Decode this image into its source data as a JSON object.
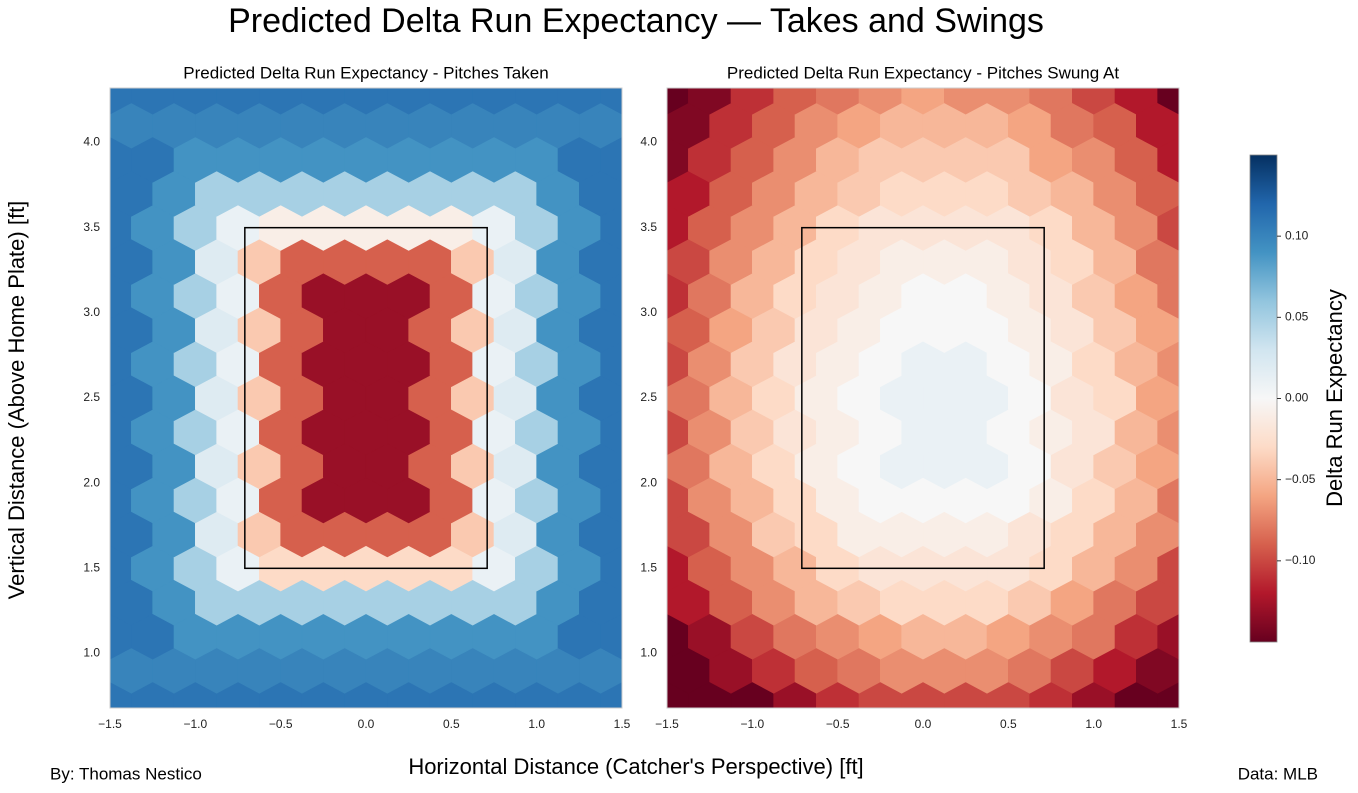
{
  "title": "Predicted Delta Run Expectancy — Takes and Swings",
  "xlabel": "Horizontal Distance (Catcher's Perspective) [ft]",
  "ylabel": "Vertical Distance (Above Home Plate) [ft]",
  "footer_left": "By: Thomas Nestico",
  "footer_right": "Data: MLB",
  "colorbar": {
    "label": "Delta Run Expectancy",
    "clim": [
      -0.15,
      0.15
    ],
    "colormap": [
      "#67001f",
      "#b2182b",
      "#d6604d",
      "#f4a582",
      "#fddbc7",
      "#f7f7f7",
      "#d1e5f0",
      "#92c5de",
      "#4393c3",
      "#2166ac",
      "#053061"
    ],
    "ticks": [
      {
        "value": 0.1,
        "label": "0.10"
      },
      {
        "value": 0.05,
        "label": "0.05"
      },
      {
        "value": 0,
        "label": "0.00"
      },
      {
        "value": -0.05,
        "label": "−0.05"
      },
      {
        "value": -0.1,
        "label": "−0.10"
      }
    ]
  },
  "chart_data": [
    {
      "type": "hexbin",
      "title": "Predicted Delta Run Expectancy - Pitches Taken",
      "xlim": [
        -1.5,
        1.5
      ],
      "ylim": [
        0.68,
        4.32
      ],
      "xticks": [
        {
          "value": -1.5,
          "label": "−1.5"
        },
        {
          "value": -1,
          "label": "−1.0"
        },
        {
          "value": -0.5,
          "label": "−0.5"
        },
        {
          "value": 0,
          "label": "0.0"
        },
        0.5,
        {
          "value": 1,
          "label": "1.0"
        },
        1.5
      ],
      "yticks": [
        {
          "value": 1,
          "label": "1.0"
        },
        1.5,
        {
          "value": 2,
          "label": "2.0"
        },
        2.5,
        {
          "value": 3,
          "label": "3.0"
        },
        3.5,
        {
          "value": 4,
          "label": "4.0"
        }
      ],
      "strike_zone": {
        "x": [
          -0.71,
          0.71
        ],
        "y": [
          1.5,
          3.5
        ]
      },
      "x_even_rows": [
        -1.5,
        -1.25,
        -1,
        -0.75,
        -0.5,
        -0.25,
        0,
        0.25,
        0.5,
        0.75,
        1,
        1.25,
        1.5
      ],
      "x_odd_rows": [
        -1.375,
        -1.125,
        -0.875,
        -0.625,
        -0.375,
        -0.125,
        0.125,
        0.375,
        0.625,
        0.875,
        1.125,
        1.375
      ],
      "y": [
        0.7,
        0.9,
        1.1,
        1.3,
        1.5,
        1.7,
        1.9,
        2.1,
        2.3,
        2.5,
        2.7,
        2.9,
        3.1,
        3.3,
        3.5,
        3.7,
        3.9,
        4.1,
        4.3
      ],
      "values": [
        [
          0.11,
          0.11,
          0.11,
          0.11,
          0.11,
          0.11,
          0.11,
          0.11,
          0.11,
          0.11,
          0.11,
          0.11,
          0.11
        ],
        [
          0.1,
          0.1,
          0.1,
          0.1,
          0.1,
          0.1,
          0.1,
          0.1,
          0.1,
          0.1,
          0.1,
          0.1
        ],
        [
          0.11,
          0.11,
          0.09,
          0.09,
          0.09,
          0.09,
          0.09,
          0.09,
          0.09,
          0.09,
          0.09,
          0.11,
          0.11
        ],
        [
          0.11,
          0.09,
          0.05,
          0.05,
          0.05,
          0.05,
          0.05,
          0.05,
          0.05,
          0.05,
          0.09,
          0.11
        ],
        [
          0.11,
          0.09,
          0.05,
          0.01,
          -0.03,
          -0.03,
          -0.03,
          -0.03,
          -0.03,
          0.01,
          0.05,
          0.09,
          0.11
        ],
        [
          0.11,
          0.09,
          0.02,
          -0.04,
          -0.09,
          -0.09,
          -0.09,
          -0.09,
          -0.04,
          0.02,
          0.09,
          0.11
        ],
        [
          0.11,
          0.09,
          0.05,
          0.01,
          -0.09,
          -0.13,
          -0.13,
          -0.13,
          -0.09,
          0.01,
          0.05,
          0.09,
          0.11
        ],
        [
          0.11,
          0.09,
          0.02,
          -0.04,
          -0.09,
          -0.13,
          -0.13,
          -0.09,
          -0.04,
          0.02,
          0.09,
          0.11
        ],
        [
          0.11,
          0.09,
          0.05,
          0.01,
          -0.09,
          -0.13,
          -0.13,
          -0.13,
          -0.09,
          0.01,
          0.05,
          0.09,
          0.11
        ],
        [
          0.11,
          0.09,
          0.02,
          -0.04,
          -0.09,
          -0.13,
          -0.13,
          -0.09,
          -0.04,
          0.02,
          0.09,
          0.11
        ],
        [
          0.11,
          0.09,
          0.05,
          0.01,
          -0.09,
          -0.13,
          -0.13,
          -0.13,
          -0.09,
          0.01,
          0.05,
          0.09,
          0.11
        ],
        [
          0.11,
          0.09,
          0.02,
          -0.04,
          -0.09,
          -0.13,
          -0.13,
          -0.09,
          -0.04,
          0.02,
          0.09,
          0.11
        ],
        [
          0.11,
          0.09,
          0.05,
          0.01,
          -0.09,
          -0.13,
          -0.13,
          -0.13,
          -0.09,
          0.01,
          0.05,
          0.09,
          0.11
        ],
        [
          0.11,
          0.09,
          0.02,
          -0.04,
          -0.09,
          -0.09,
          -0.09,
          -0.09,
          -0.04,
          0.02,
          0.09,
          0.11
        ],
        [
          0.11,
          0.09,
          0.05,
          0.01,
          -0.01,
          -0.01,
          -0.01,
          -0.01,
          -0.01,
          0.01,
          0.05,
          0.09,
          0.11
        ],
        [
          0.11,
          0.09,
          0.05,
          0.05,
          0.05,
          0.05,
          0.05,
          0.05,
          0.05,
          0.05,
          0.09,
          0.11
        ],
        [
          0.11,
          0.11,
          0.09,
          0.09,
          0.09,
          0.09,
          0.09,
          0.09,
          0.09,
          0.09,
          0.09,
          0.11,
          0.11
        ],
        [
          0.1,
          0.1,
          0.1,
          0.1,
          0.1,
          0.1,
          0.1,
          0.1,
          0.1,
          0.1,
          0.1,
          0.1
        ],
        [
          0.11,
          0.11,
          0.11,
          0.11,
          0.11,
          0.11,
          0.11,
          0.11,
          0.11,
          0.11,
          0.11,
          0.11,
          0.11
        ]
      ]
    },
    {
      "type": "hexbin",
      "title": "Predicted Delta Run Expectancy - Pitches Swung At",
      "xlim": [
        -1.5,
        1.5
      ],
      "ylim": [
        0.68,
        4.32
      ],
      "xticks": [
        {
          "value": -1.5,
          "label": "−1.5"
        },
        {
          "value": -1,
          "label": "−1.0"
        },
        {
          "value": -0.5,
          "label": "−0.5"
        },
        {
          "value": 0,
          "label": "0.0"
        },
        0.5,
        {
          "value": 1,
          "label": "1.0"
        },
        1.5
      ],
      "yticks": [
        {
          "value": 1,
          "label": "1.0"
        },
        1.5,
        {
          "value": 2,
          "label": "2.0"
        },
        2.5,
        {
          "value": 3,
          "label": "3.0"
        },
        3.5,
        {
          "value": 4,
          "label": "4.0"
        }
      ],
      "strike_zone": {
        "x": [
          -0.71,
          0.71
        ],
        "y": [
          1.5,
          3.5
        ]
      },
      "x_even_rows": [
        -1.5,
        -1.25,
        -1,
        -0.75,
        -0.5,
        -0.25,
        0,
        0.25,
        0.5,
        0.75,
        1,
        1.25,
        1.5
      ],
      "x_odd_rows": [
        -1.375,
        -1.125,
        -0.875,
        -0.625,
        -0.375,
        -0.125,
        0.125,
        0.375,
        0.625,
        0.875,
        1.125,
        1.375
      ],
      "y": [
        0.7,
        0.9,
        1.1,
        1.3,
        1.5,
        1.7,
        1.9,
        2.1,
        2.3,
        2.5,
        2.7,
        2.9,
        3.1,
        3.3,
        3.5,
        3.7,
        3.9,
        4.1,
        4.3
      ],
      "values": [
        [
          -0.2,
          -0.17,
          -0.15,
          -0.13,
          -0.11,
          -0.1,
          -0.1,
          -0.1,
          -0.1,
          -0.11,
          -0.13,
          -0.15,
          -0.18
        ],
        [
          -0.16,
          -0.13,
          -0.11,
          -0.09,
          -0.08,
          -0.07,
          -0.07,
          -0.07,
          -0.08,
          -0.1,
          -0.12,
          -0.14
        ],
        [
          -0.16,
          -0.13,
          -0.1,
          -0.08,
          -0.07,
          -0.06,
          -0.05,
          -0.05,
          -0.06,
          -0.07,
          -0.08,
          -0.11,
          -0.13
        ],
        [
          -0.12,
          -0.09,
          -0.07,
          -0.05,
          -0.04,
          -0.03,
          -0.03,
          -0.03,
          -0.04,
          -0.06,
          -0.08,
          -0.1
        ],
        [
          -0.12,
          -0.09,
          -0.07,
          -0.05,
          -0.03,
          -0.02,
          -0.02,
          -0.02,
          -0.02,
          -0.03,
          -0.05,
          -0.07,
          -0.1
        ],
        [
          -0.1,
          -0.07,
          -0.04,
          -0.03,
          -0.01,
          -0.01,
          -0.01,
          -0.01,
          -0.02,
          -0.03,
          -0.05,
          -0.07
        ],
        [
          -0.1,
          -0.07,
          -0.05,
          -0.03,
          -0.01,
          0,
          0,
          0,
          0,
          -0.01,
          -0.03,
          -0.05,
          -0.08
        ],
        [
          -0.08,
          -0.05,
          -0.03,
          -0.01,
          0,
          0.01,
          0.01,
          0.01,
          0,
          -0.02,
          -0.04,
          -0.06
        ],
        [
          -0.1,
          -0.07,
          -0.04,
          -0.02,
          -0.01,
          0,
          0.01,
          0.01,
          0,
          -0.01,
          -0.02,
          -0.05,
          -0.07
        ],
        [
          -0.08,
          -0.05,
          -0.03,
          -0.01,
          0,
          0.01,
          0.01,
          0.01,
          0,
          -0.02,
          -0.03,
          -0.06
        ],
        [
          -0.1,
          -0.07,
          -0.04,
          -0.02,
          -0.01,
          0,
          0.01,
          0.01,
          0,
          -0.01,
          -0.03,
          -0.05,
          -0.07
        ],
        [
          -0.09,
          -0.06,
          -0.04,
          -0.02,
          -0.01,
          0,
          0,
          0,
          -0.01,
          -0.02,
          -0.04,
          -0.06
        ],
        [
          -0.11,
          -0.08,
          -0.05,
          -0.03,
          -0.02,
          -0.01,
          0,
          0,
          -0.01,
          -0.02,
          -0.04,
          -0.06,
          -0.08
        ],
        [
          -0.1,
          -0.07,
          -0.05,
          -0.03,
          -0.02,
          -0.01,
          -0.01,
          -0.01,
          -0.02,
          -0.03,
          -0.05,
          -0.08
        ],
        [
          -0.12,
          -0.09,
          -0.07,
          -0.05,
          -0.03,
          -0.02,
          -0.02,
          -0.02,
          -0.02,
          -0.03,
          -0.05,
          -0.07,
          -0.1
        ],
        [
          -0.12,
          -0.09,
          -0.07,
          -0.05,
          -0.04,
          -0.03,
          -0.03,
          -0.03,
          -0.04,
          -0.05,
          -0.07,
          -0.09
        ],
        [
          -0.14,
          -0.11,
          -0.09,
          -0.07,
          -0.05,
          -0.04,
          -0.04,
          -0.04,
          -0.04,
          -0.06,
          -0.07,
          -0.09,
          -0.12
        ],
        [
          -0.14,
          -0.11,
          -0.09,
          -0.07,
          -0.06,
          -0.05,
          -0.05,
          -0.05,
          -0.06,
          -0.08,
          -0.09,
          -0.12
        ],
        [
          -0.17,
          -0.14,
          -0.11,
          -0.09,
          -0.08,
          -0.07,
          -0.06,
          -0.07,
          -0.07,
          -0.08,
          -0.1,
          -0.12,
          -0.15
        ]
      ]
    }
  ]
}
